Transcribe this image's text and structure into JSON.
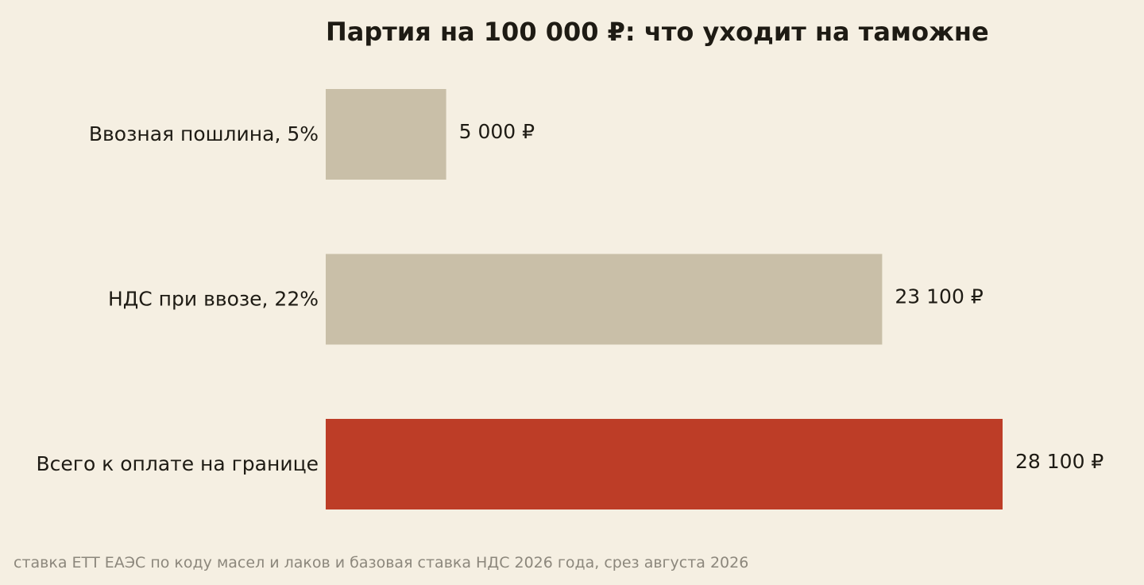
{
  "chart_data": {
    "type": "bar",
    "orientation": "horizontal",
    "title": "Партия на 100 000 ₽: что уходит на таможне",
    "categories": [
      "Ввозная пошлина, 5%",
      "НДС при ввозе, 22%",
      "Всего к оплате на границе"
    ],
    "values": [
      5000,
      23100,
      28100
    ],
    "value_labels": [
      "5 000 ₽",
      "23 100 ₽",
      "28 100 ₽"
    ],
    "colors": [
      "#c9bfa8",
      "#c9bfa8",
      "#bd3d27"
    ],
    "xlim": [
      0,
      28100
    ],
    "grid": false,
    "legend": "none"
  },
  "footnote": "ставка ЕТТ ЕАЭС по коду масел и лаков и базовая ставка НДС 2026 года, срез августа 2026",
  "colors": {
    "background": "#f5efe2",
    "text": "#1e1b14",
    "muted": "#8c877c",
    "accent": "#bd3d27",
    "bar": "#c9bfa8"
  }
}
